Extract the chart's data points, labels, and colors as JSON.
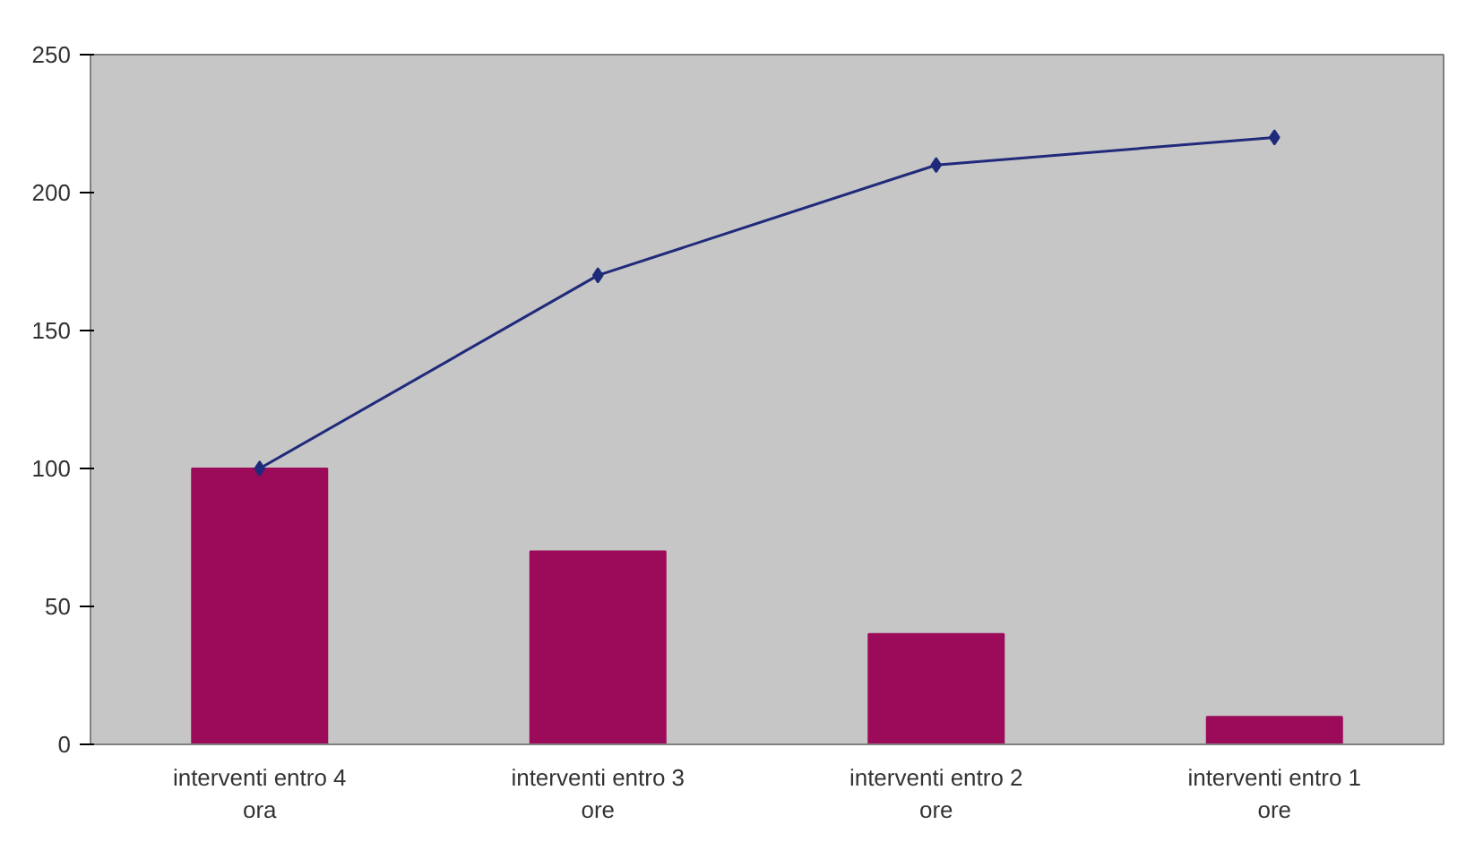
{
  "chart_data": {
    "type": "bar",
    "categories": [
      "interventi entro 4 ora",
      "interventi entro 3 ore",
      "interventi entro 2 ore",
      "interventi entro 1 ore"
    ],
    "series": [
      {
        "color": "#9c0a5a",
        "values": [
          100,
          70,
          40,
          10
        ]
      },
      {
        "type": "line",
        "color": "#1f2a7a",
        "values": [
          100,
          170,
          210,
          220
        ],
        "marker": "diamond"
      }
    ],
    "ylim": [
      0,
      250
    ],
    "yticks": [
      0,
      50,
      100,
      150,
      200,
      250
    ],
    "grid": false
  }
}
